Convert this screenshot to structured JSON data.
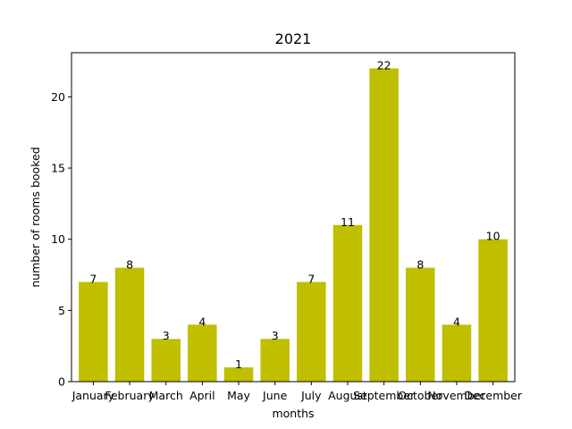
{
  "chart_data": {
    "type": "bar",
    "title": "2021",
    "xlabel": "months",
    "ylabel": "number of rooms booked",
    "categories": [
      "January",
      "February",
      "March",
      "April",
      "May",
      "June",
      "July",
      "August",
      "September",
      "October",
      "November",
      "December"
    ],
    "values": [
      7,
      8,
      3,
      4,
      1,
      3,
      7,
      11,
      22,
      8,
      4,
      10
    ],
    "ylim": [
      0,
      23.1
    ],
    "yticks": [
      0,
      5,
      10,
      15,
      20
    ],
    "bar_color": "#bfbf00",
    "grid": false,
    "legend": "none"
  }
}
